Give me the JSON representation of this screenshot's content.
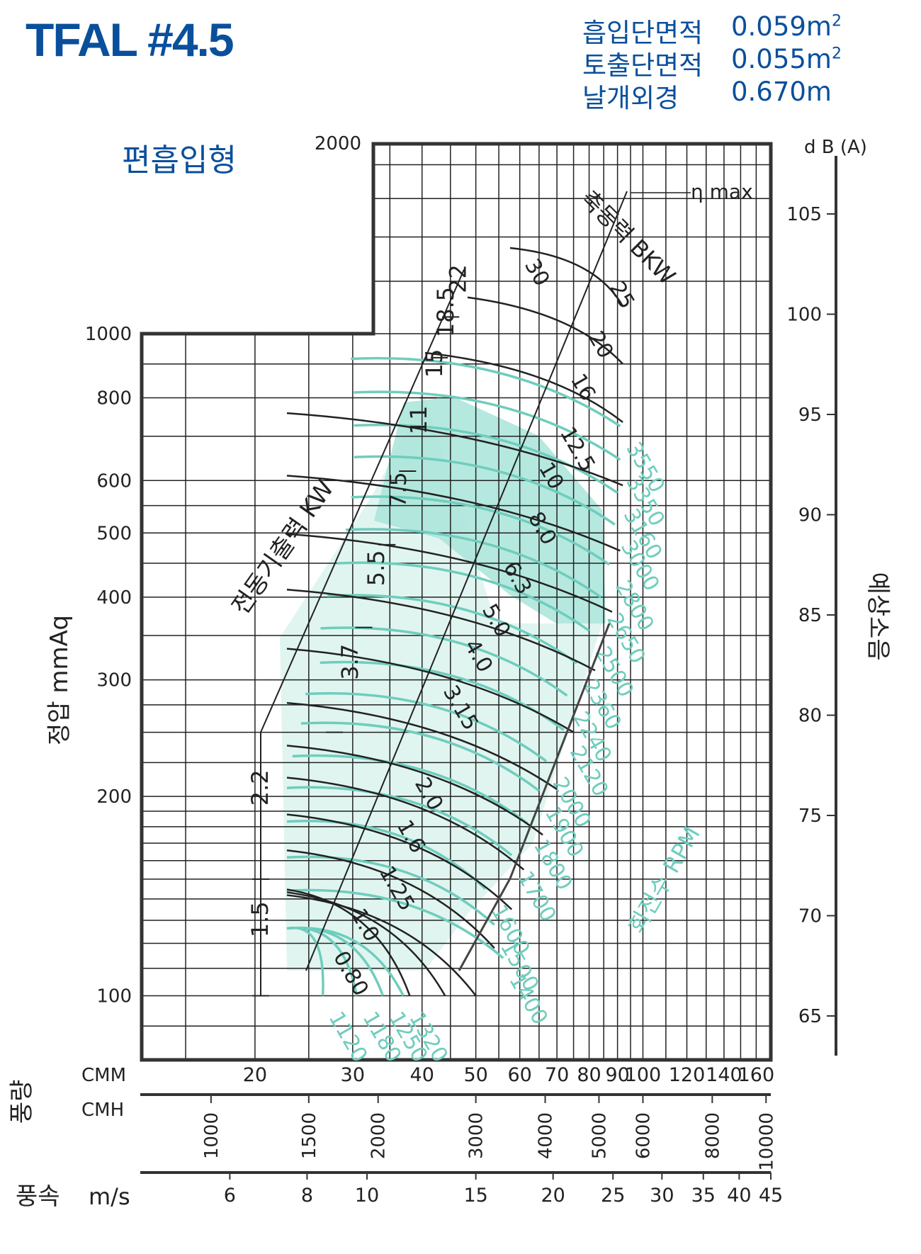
{
  "header": {
    "title": "TFAL #4.5",
    "subtitle": "편흡입형",
    "specs": [
      {
        "label": "흡입단면적",
        "value": "0.059m",
        "sup": "2"
      },
      {
        "label": "토출단면적",
        "value": "0.055m",
        "sup": "2"
      },
      {
        "label": "날개외경",
        "value": "0.670m",
        "sup": ""
      }
    ]
  },
  "colors": {
    "grid": "#222222",
    "rpm": "#6fcdbd",
    "fill": "#a8e4d8",
    "fill_light": "#d8f2ec",
    "accent": "#0a4f9c"
  },
  "chart_data": {
    "type": "line",
    "title": "TFAL #4.5",
    "xlabel": "풍량",
    "ylabel": "정압 mmAq",
    "x_scale": "log",
    "y_scale": "log",
    "xlim_cmm": [
      12.5,
      170
    ],
    "ylim_mmAq": [
      80,
      2000
    ],
    "y_ticks": [
      {
        "v": 100,
        "label": "100"
      },
      {
        "v": 200,
        "label": "200"
      },
      {
        "v": 300,
        "label": "300"
      },
      {
        "v": 400,
        "label": "400"
      },
      {
        "v": 500,
        "label": "500"
      },
      {
        "v": 600,
        "label": "600"
      },
      {
        "v": 800,
        "label": "800"
      },
      {
        "v": 1000,
        "label": "1000"
      },
      {
        "v": 2000,
        "label": "2000"
      }
    ],
    "cmm_axis": {
      "unit": "CMM",
      "ticks": [
        {
          "v": 20,
          "label": "20"
        },
        {
          "v": 30,
          "label": "30"
        },
        {
          "v": 40,
          "label": "40"
        },
        {
          "v": 50,
          "label": "50"
        },
        {
          "v": 60,
          "label": "60"
        },
        {
          "v": 70,
          "label": "70"
        },
        {
          "v": 80,
          "label": "80"
        },
        {
          "v": 90,
          "label": "90"
        },
        {
          "v": 100,
          "label": "100"
        },
        {
          "v": 120,
          "label": "120"
        },
        {
          "v": 140,
          "label": "140"
        },
        {
          "v": 160,
          "label": "160"
        }
      ]
    },
    "cmh_axis": {
      "unit": "CMH",
      "ticks": [
        {
          "v": 1000,
          "label": "1000"
        },
        {
          "v": 1500,
          "label": "1500"
        },
        {
          "v": 2000,
          "label": "2000"
        },
        {
          "v": 3000,
          "label": "3000"
        },
        {
          "v": 4000,
          "label": "4000"
        },
        {
          "v": 5000,
          "label": "5000"
        },
        {
          "v": 6000,
          "label": "6000"
        },
        {
          "v": 8000,
          "label": "8000"
        },
        {
          "v": 10000,
          "label": "10000"
        }
      ]
    },
    "velocity_axis": {
      "label": "풍속",
      "unit": "m/s",
      "ticks": [
        {
          "v": 6,
          "label": "6"
        },
        {
          "v": 8,
          "label": "8"
        },
        {
          "v": 10,
          "label": "10"
        },
        {
          "v": 15,
          "label": "15"
        },
        {
          "v": 20,
          "label": "20"
        },
        {
          "v": 25,
          "label": "25"
        },
        {
          "v": 30,
          "label": "30"
        },
        {
          "v": 35,
          "label": "35"
        },
        {
          "v": 40,
          "label": "40"
        },
        {
          "v": 45,
          "label": "45"
        }
      ]
    },
    "noise_axis": {
      "label": "예상소음",
      "unit": "d B  (A)",
      "ticks": [
        {
          "v": 65,
          "label": "65"
        },
        {
          "v": 70,
          "label": "70"
        },
        {
          "v": 75,
          "label": "75"
        },
        {
          "v": 80,
          "label": "80"
        },
        {
          "v": 85,
          "label": "85"
        },
        {
          "v": 90,
          "label": "90"
        },
        {
          "v": 95,
          "label": "95"
        },
        {
          "v": 100,
          "label": "100"
        },
        {
          "v": 105,
          "label": "105"
        }
      ]
    },
    "eta_label": "η max",
    "shaft_power_label": "축동력 BKW",
    "motor_power_label": "전동기출력 KW",
    "rpm_label": "회전수 RPM",
    "rpm_series": [
      {
        "name": "1120",
        "q_end": 26.5,
        "p_end": 100
      },
      {
        "name": "1180",
        "q_end": 30.5,
        "p_end": 100
      },
      {
        "name": "1250",
        "q_end": 34,
        "p_end": 100
      },
      {
        "name": "1320",
        "q_end": 37,
        "p_end": 100
      },
      {
        "name": "1400",
        "q_end": 56,
        "p_end": 114
      },
      {
        "name": "1500",
        "q_end": 54,
        "p_end": 128
      },
      {
        "name": "1600",
        "q_end": 52,
        "p_end": 145
      },
      {
        "name": "1700",
        "q_end": 58,
        "p_end": 163
      },
      {
        "name": "1800",
        "q_end": 62,
        "p_end": 182
      },
      {
        "name": "1900",
        "q_end": 65,
        "p_end": 204
      },
      {
        "name": "2000",
        "q_end": 67,
        "p_end": 226
      },
      {
        "name": "2120",
        "q_end": 72,
        "p_end": 252
      },
      {
        "name": "2240",
        "q_end": 73,
        "p_end": 284
      },
      {
        "name": "2360",
        "q_end": 76,
        "p_end": 318
      },
      {
        "name": "2500",
        "q_end": 80,
        "p_end": 356
      },
      {
        "name": "2650",
        "q_end": 84,
        "p_end": 400
      },
      {
        "name": "2800",
        "q_end": 87,
        "p_end": 448
      },
      {
        "name": "3000",
        "q_end": 89,
        "p_end": 515
      },
      {
        "name": "3160",
        "q_end": 90,
        "p_end": 575
      },
      {
        "name": "3350",
        "q_end": 91,
        "p_end": 645
      },
      {
        "name": "3550",
        "q_end": 91,
        "p_end": 725
      }
    ],
    "shaft_power_kw": [
      {
        "v": "0.80",
        "q": 38,
        "p": 100
      },
      {
        "v": "1.0",
        "q": 44,
        "p": 100
      },
      {
        "v": "1.25",
        "q": 50,
        "p": 100
      },
      {
        "v": "1.6",
        "q": 54,
        "p": 118
      },
      {
        "v": "2.0",
        "q": 58,
        "p": 135
      },
      {
        "v": "3.15",
        "q": 61,
        "p": 155
      },
      {
        "v": "4.0",
        "q": 66,
        "p": 175
      },
      {
        "v": "5.0",
        "q": 70,
        "p": 205
      },
      {
        "v": "6.3",
        "q": 75,
        "p": 250
      },
      {
        "v": "8.0",
        "q": 82,
        "p": 310
      },
      {
        "v": "10",
        "q": 88,
        "p": 380
      },
      {
        "v": "12.5",
        "q": 91,
        "p": 470
      },
      {
        "v": "16",
        "q": 92,
        "p": 590
      },
      {
        "v": "20",
        "q": 92,
        "p": 735
      },
      {
        "v": "25",
        "q": 92,
        "p": 900
      },
      {
        "v": "30",
        "q": 92,
        "p": 1100
      }
    ],
    "motor_power_kw": [
      {
        "v": "1.5",
        "p_lo": 100,
        "p_hi": 150
      },
      {
        "v": "2.2",
        "p_lo": 150,
        "p_hi": 250
      },
      {
        "v": "3.7",
        "p_lo": 250,
        "p_hi": 360
      },
      {
        "v": "5.5",
        "p_lo": 360,
        "p_hi": 480
      },
      {
        "v": "7.5",
        "p_lo": 480,
        "p_hi": 620
      },
      {
        "v": "11",
        "p_lo": 620,
        "p_hi": 800
      },
      {
        "v": "15",
        "p_lo": 800,
        "p_hi": 920
      },
      {
        "v": "18.5",
        "p_lo": 920,
        "p_hi": 1060
      },
      {
        "v": "22",
        "p_lo": 1060,
        "p_hi": 1250
      }
    ]
  }
}
